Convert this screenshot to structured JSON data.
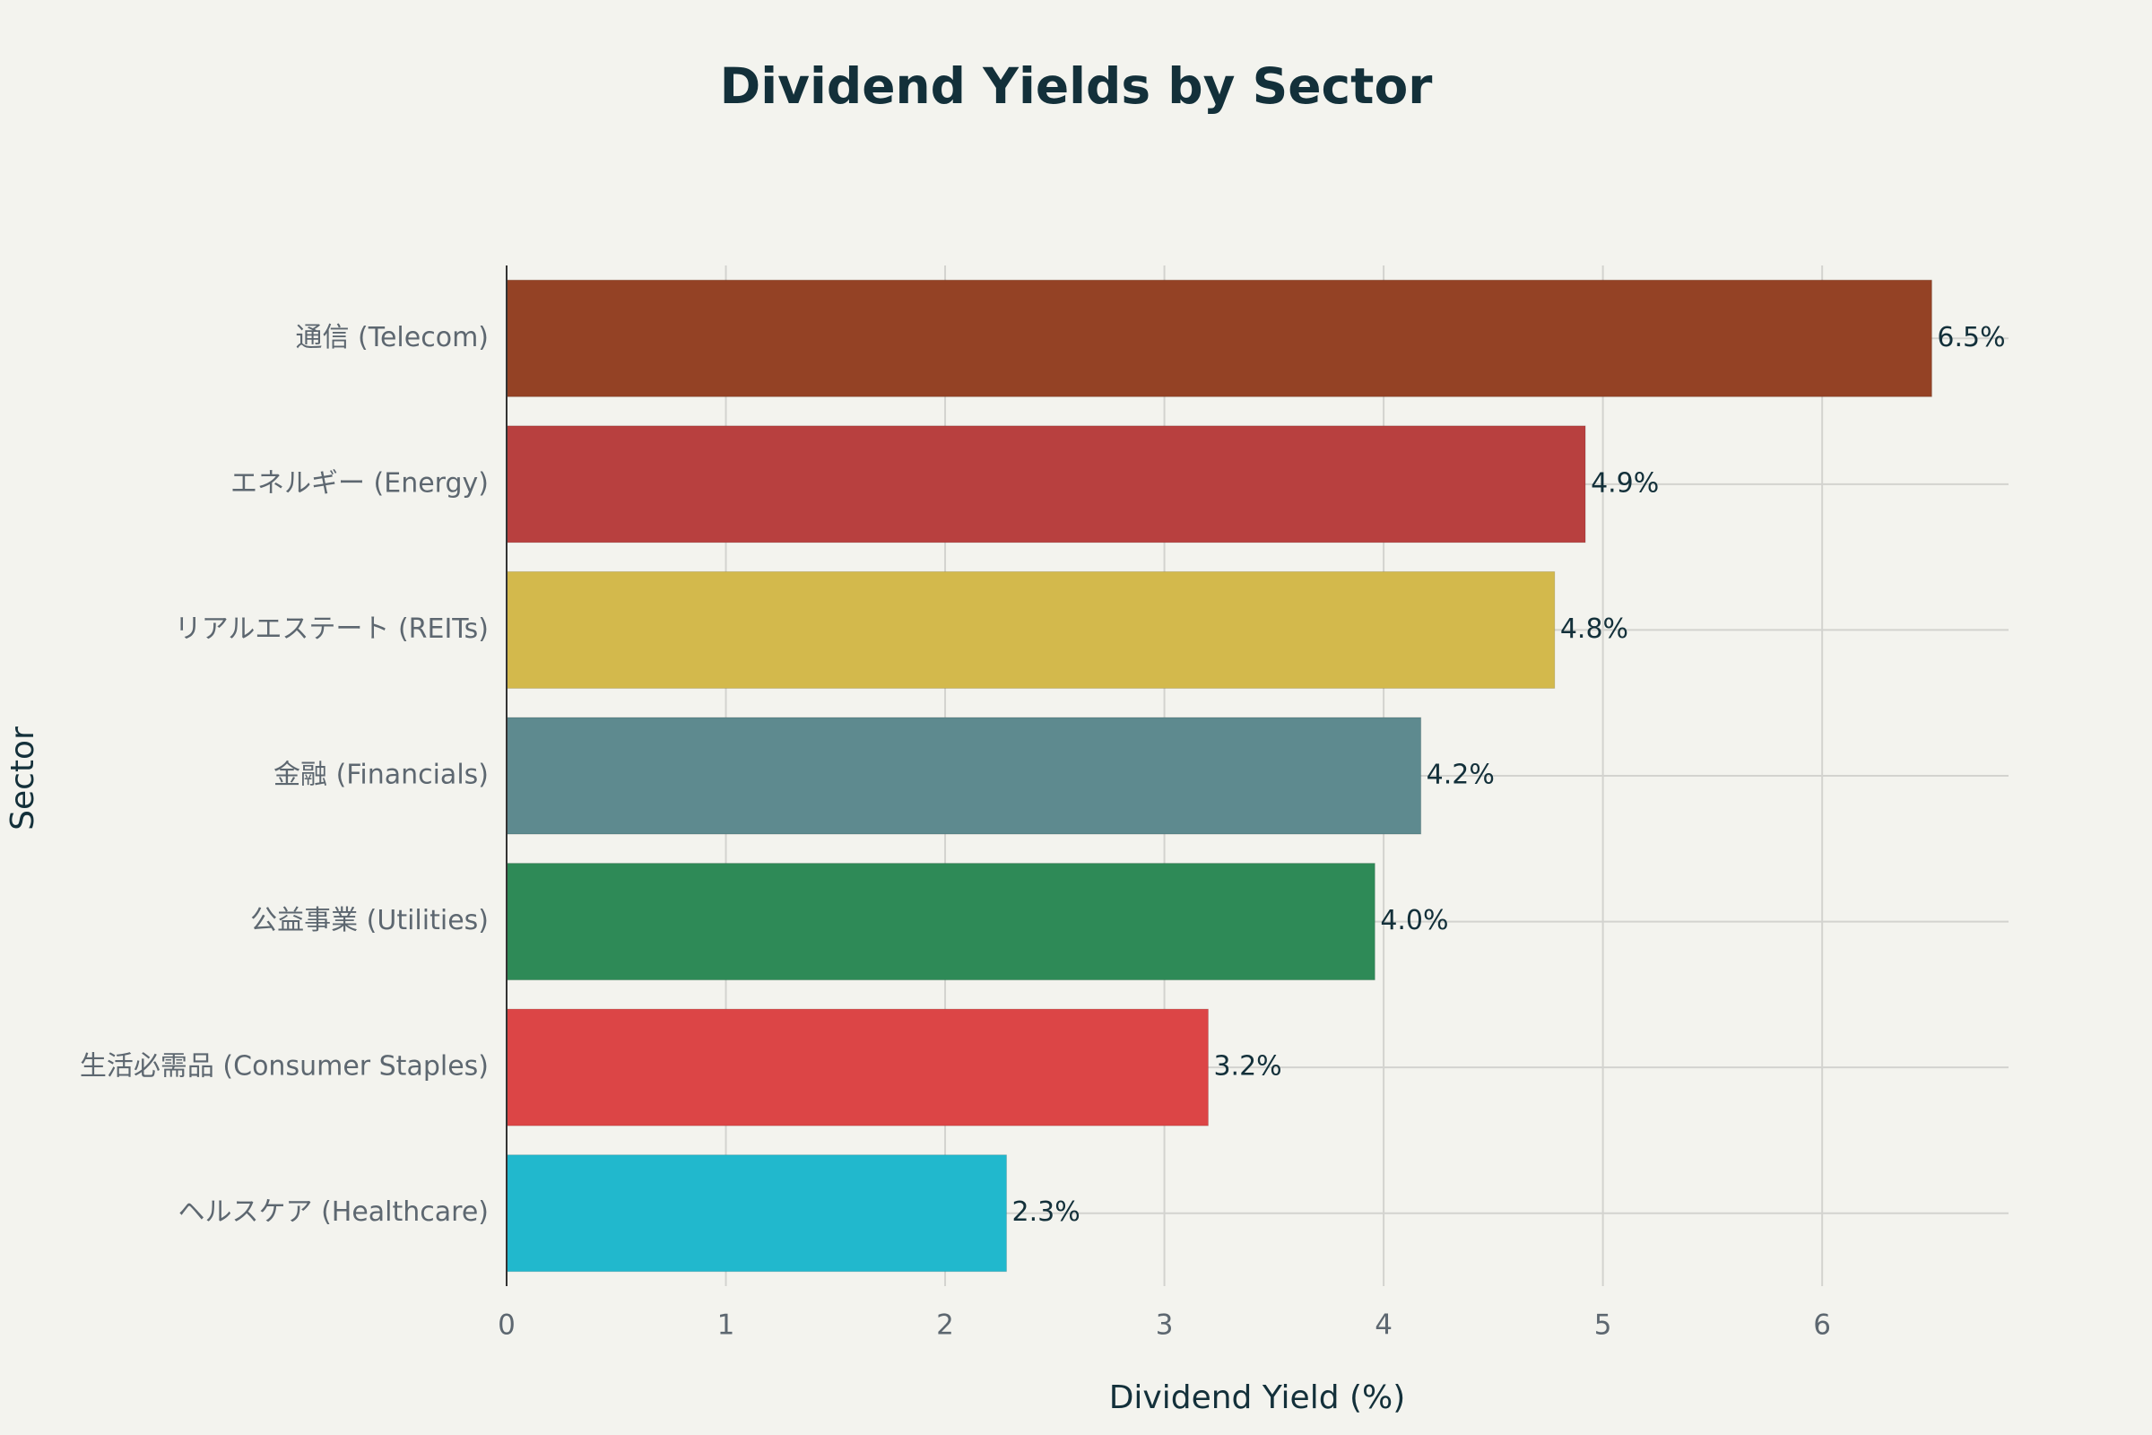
{
  "chart_data": {
    "type": "bar",
    "orientation": "horizontal",
    "title": "Dividend Yields by Sector",
    "xlabel": "Dividend Yield (%)",
    "ylabel": "Sector",
    "xlim": [
      0,
      6.85
    ],
    "xticks": [
      0,
      1,
      2,
      3,
      4,
      5,
      6
    ],
    "grid": true,
    "legend": "none",
    "categories": [
      "通信 (Telecom)",
      "エネルギー (Energy)",
      "リアルエステート (REITs)",
      "金融 (Financials)",
      "公益事業 (Utilities)",
      "生活必需品 (Consumer Staples)",
      "ヘルスケア (Healthcare)"
    ],
    "values": [
      6.5,
      4.92,
      4.78,
      4.17,
      3.96,
      3.2,
      2.28
    ],
    "data_labels": [
      "6.5%",
      "4.9%",
      "4.8%",
      "4.2%",
      "4.0%",
      "3.2%",
      "2.3%"
    ],
    "colors": [
      "#944225",
      "#b8403f",
      "#d3b94c",
      "#5e8a8f",
      "#2e8a57",
      "#dc4546",
      "#21b8cd"
    ]
  }
}
